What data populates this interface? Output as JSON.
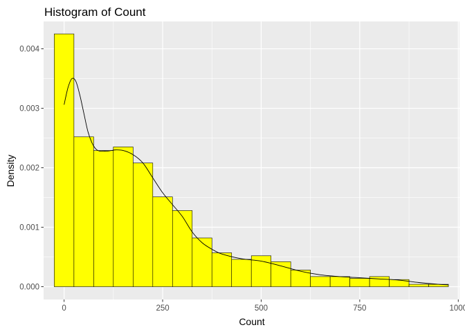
{
  "chart_data": {
    "type": "bar",
    "title": "Histogram of Count",
    "xlabel": "Count",
    "ylabel": "Density",
    "bin_width": 50,
    "bins": [
      {
        "x0": -25,
        "x1": 25,
        "density": 0.00425
      },
      {
        "x0": 25,
        "x1": 75,
        "density": 0.00252
      },
      {
        "x0": 75,
        "x1": 125,
        "density": 0.00229
      },
      {
        "x0": 125,
        "x1": 175,
        "density": 0.00235
      },
      {
        "x0": 175,
        "x1": 225,
        "density": 0.00208
      },
      {
        "x0": 225,
        "x1": 275,
        "density": 0.00151
      },
      {
        "x0": 275,
        "x1": 325,
        "density": 0.00128
      },
      {
        "x0": 325,
        "x1": 375,
        "density": 0.00082
      },
      {
        "x0": 375,
        "x1": 425,
        "density": 0.00057
      },
      {
        "x0": 425,
        "x1": 475,
        "density": 0.00046
      },
      {
        "x0": 475,
        "x1": 525,
        "density": 0.00052
      },
      {
        "x0": 525,
        "x1": 575,
        "density": 0.00042
      },
      {
        "x0": 575,
        "x1": 625,
        "density": 0.00028
      },
      {
        "x0": 625,
        "x1": 675,
        "density": 0.00017
      },
      {
        "x0": 675,
        "x1": 725,
        "density": 0.00017
      },
      {
        "x0": 725,
        "x1": 775,
        "density": 0.00014
      },
      {
        "x0": 775,
        "x1": 825,
        "density": 0.00017
      },
      {
        "x0": 825,
        "x1": 875,
        "density": 0.00012
      },
      {
        "x0": 875,
        "x1": 925,
        "density": 4e-05
      },
      {
        "x0": 925,
        "x1": 975,
        "density": 4e-05
      }
    ],
    "density_curve": {
      "x": [
        0,
        10,
        20,
        30,
        40,
        50,
        60,
        70,
        80,
        90,
        100,
        110,
        120,
        130,
        150,
        175,
        200,
        225,
        250,
        275,
        300,
        325,
        350,
        375,
        400,
        450,
        500,
        550,
        600,
        650,
        700,
        750,
        800,
        850,
        900,
        950,
        975
      ],
      "y": [
        0.00306,
        0.00335,
        0.0035,
        0.00345,
        0.00322,
        0.00292,
        0.00262,
        0.00243,
        0.00232,
        0.00228,
        0.00228,
        0.00228,
        0.00229,
        0.0023,
        0.00229,
        0.00222,
        0.00208,
        0.00183,
        0.00158,
        0.00138,
        0.00118,
        0.00092,
        0.00074,
        0.00063,
        0.00055,
        0.00047,
        0.00043,
        0.00035,
        0.00026,
        0.0002,
        0.00017,
        0.00015,
        0.00013,
        0.00011,
        7e-05,
        4e-05,
        3e-05
      ]
    },
    "xlim": [
      -52,
      1003
    ],
    "ylim": [
      -0.000215,
      0.00446
    ],
    "x_ticks": [
      0,
      250,
      500,
      750,
      1000
    ],
    "x_tick_labels": [
      "0",
      "250",
      "500",
      "750",
      "1000"
    ],
    "y_ticks": [
      0,
      0.001,
      0.002,
      0.003,
      0.004
    ],
    "y_tick_labels": [
      "0.000",
      "0.001",
      "0.002",
      "0.003",
      "0.004"
    ],
    "grid": true,
    "colors": {
      "bar_fill": "#ffff00",
      "bar_stroke": "#000000",
      "panel_background": "#ebebeb",
      "grid_line": "#ffffff",
      "curve": "#000000",
      "tick_text": "#4d4d4d"
    }
  }
}
